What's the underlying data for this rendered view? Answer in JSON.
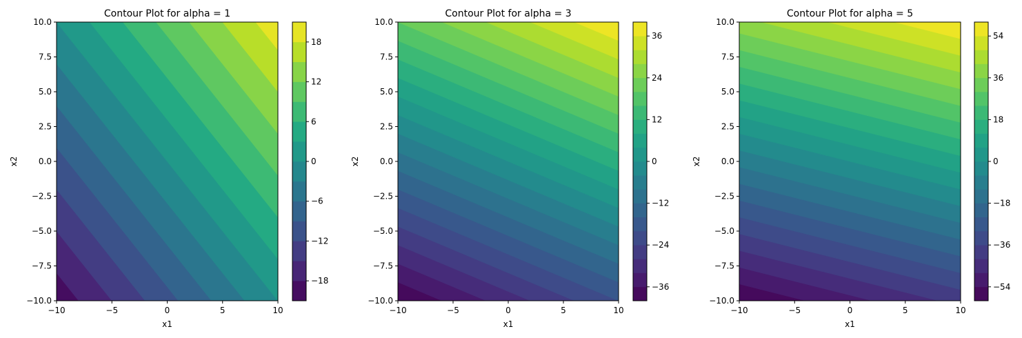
{
  "chart_data": [
    {
      "type": "contour",
      "title": "Contour Plot for alpha = 1",
      "xlabel": "x1",
      "ylabel": "x2",
      "xlim": [
        -10,
        10
      ],
      "ylim": [
        -10,
        10
      ],
      "x_ticks": [
        -10,
        -5,
        0,
        5,
        10
      ],
      "x_tick_labels": [
        "−10",
        "−5",
        "0",
        "5",
        "10"
      ],
      "y_ticks": [
        -10,
        -7.5,
        -5,
        -2.5,
        0,
        2.5,
        5,
        7.5,
        10
      ],
      "y_tick_labels": [
        "−10.0",
        "−7.5",
        "−5.0",
        "−2.5",
        "0.0",
        "2.5",
        "5.0",
        "7.5",
        "10.0"
      ],
      "function": {
        "coef_x1": 1,
        "coef_x2": 1
      },
      "value_range": [
        -20,
        20
      ],
      "levels": [
        -21,
        -18,
        -15,
        -12,
        -9,
        -6,
        -3,
        0,
        3,
        6,
        9,
        12,
        15,
        18,
        21
      ],
      "colorbar_ticks": [
        -18,
        -12,
        -6,
        0,
        6,
        12,
        18
      ],
      "colorbar_tick_labels": [
        "−18",
        "−12",
        "−6",
        "0",
        "6",
        "12",
        "18"
      ],
      "colormap": "viridis"
    },
    {
      "type": "contour",
      "title": "Contour Plot for alpha = 3",
      "xlabel": "x1",
      "ylabel": "x2",
      "xlim": [
        -10,
        10
      ],
      "ylim": [
        -10,
        10
      ],
      "x_ticks": [
        -10,
        -5,
        0,
        5,
        10
      ],
      "x_tick_labels": [
        "−10",
        "−5",
        "0",
        "5",
        "10"
      ],
      "y_ticks": [
        -10,
        -7.5,
        -5,
        -2.5,
        0,
        2.5,
        5,
        7.5,
        10
      ],
      "y_tick_labels": [
        "−10.0",
        "−7.5",
        "−5.0",
        "−2.5",
        "0.0",
        "2.5",
        "5.0",
        "7.5",
        "10.0"
      ],
      "function": {
        "coef_x1": 1,
        "coef_x2": 3
      },
      "value_range": [
        -40,
        40
      ],
      "levels": [
        -40,
        -36,
        -32,
        -28,
        -24,
        -20,
        -16,
        -12,
        -8,
        -4,
        0,
        4,
        8,
        12,
        16,
        20,
        24,
        28,
        32,
        36,
        40
      ],
      "colorbar_ticks": [
        -36,
        -24,
        -12,
        0,
        12,
        24,
        36
      ],
      "colorbar_tick_labels": [
        "−36",
        "−24",
        "−12",
        "0",
        "12",
        "24",
        "36"
      ],
      "colormap": "viridis"
    },
    {
      "type": "contour",
      "title": "Contour Plot for alpha = 5",
      "xlabel": "x1",
      "ylabel": "x2",
      "xlim": [
        -10,
        10
      ],
      "ylim": [
        -10,
        10
      ],
      "x_ticks": [
        -10,
        -5,
        0,
        5,
        10
      ],
      "x_tick_labels": [
        "−10",
        "−5",
        "0",
        "5",
        "10"
      ],
      "y_ticks": [
        -10,
        -7.5,
        -5,
        -2.5,
        0,
        2.5,
        5,
        7.5,
        10
      ],
      "y_tick_labels": [
        "−10.0",
        "−7.5",
        "−5.0",
        "−2.5",
        "0.0",
        "2.5",
        "5.0",
        "7.5",
        "10.0"
      ],
      "function": {
        "coef_x1": 1,
        "coef_x2": 5
      },
      "value_range": [
        -60,
        60
      ],
      "levels": [
        -60,
        -54,
        -48,
        -42,
        -36,
        -30,
        -24,
        -18,
        -12,
        -6,
        0,
        6,
        12,
        18,
        24,
        30,
        36,
        42,
        48,
        54,
        60
      ],
      "colorbar_ticks": [
        -54,
        -36,
        -18,
        0,
        18,
        36,
        54
      ],
      "colorbar_tick_labels": [
        "−54",
        "−36",
        "−18",
        "0",
        "18",
        "36",
        "54"
      ],
      "colormap": "viridis"
    }
  ]
}
